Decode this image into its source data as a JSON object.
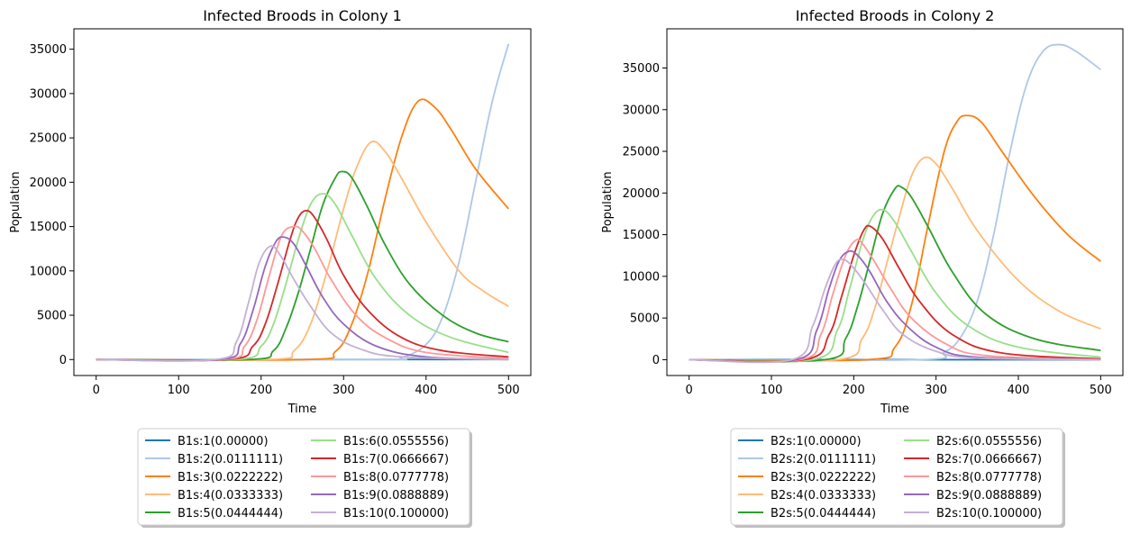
{
  "chart_data": [
    {
      "type": "line",
      "title": "Infected Broods in Colony 1",
      "xlabel": "Time",
      "ylabel": "Population",
      "xlim": [
        -27,
        527
      ],
      "ylim": [
        -1800,
        37300
      ],
      "xticks": [
        0,
        100,
        200,
        300,
        400,
        500
      ],
      "yticks": [
        0,
        5000,
        10000,
        15000,
        20000,
        25000,
        30000,
        35000
      ],
      "legend_placement": "below",
      "series": [
        {
          "name": "B1s:1(0.00000)",
          "color": "#1f77b4",
          "x": [
            0,
            500
          ],
          "y": [
            0,
            0
          ]
        },
        {
          "name": "B1s:2(0.0111111)",
          "color": "#aec7e8",
          "x": [
            0,
            340,
            370,
            400,
            420,
            440,
            460,
            480,
            500
          ],
          "y": [
            0,
            0,
            200,
            1700,
            4800,
            11000,
            20000,
            29000,
            35600
          ]
        },
        {
          "name": "B1s:3(0.0222222)",
          "color": "#ff7f0e",
          "x": [
            0,
            255,
            290,
            310,
            330,
            350,
            370,
            390,
            410,
            430,
            460,
            500
          ],
          "y": [
            0,
            0,
            900,
            4000,
            10000,
            18000,
            25000,
            29100,
            28500,
            26000,
            21500,
            17000
          ]
        },
        {
          "name": "B1s:4(0.0333333)",
          "color": "#ffbb78",
          "x": [
            0,
            210,
            240,
            260,
            280,
            300,
            315,
            333,
            350,
            370,
            400,
            440,
            470,
            500
          ],
          "y": [
            0,
            0,
            1000,
            4000,
            10000,
            17000,
            21500,
            24500,
            23500,
            20500,
            15500,
            10000,
            7700,
            6000
          ]
        },
        {
          "name": "B1s:5(0.0444444)",
          "color": "#2ca02c",
          "x": [
            0,
            185,
            215,
            230,
            245,
            260,
            275,
            290,
            298,
            310,
            330,
            350,
            380,
            420,
            460,
            500
          ],
          "y": [
            0,
            0,
            1000,
            3500,
            7500,
            12500,
            17500,
            20500,
            21200,
            20500,
            17000,
            13000,
            8500,
            5000,
            3000,
            2000
          ]
        },
        {
          "name": "B1s:6(0.0555556)",
          "color": "#98df8a",
          "x": [
            0,
            170,
            200,
            215,
            230,
            245,
            260,
            275,
            290,
            310,
            340,
            380,
            430,
            500
          ],
          "y": [
            0,
            0,
            1500,
            4000,
            8500,
            13500,
            17500,
            18700,
            17500,
            14000,
            9000,
            5000,
            2500,
            800
          ]
        },
        {
          "name": "B1s:7(0.0666667)",
          "color": "#d62728",
          "x": [
            0,
            160,
            190,
            205,
            220,
            235,
            245,
            255,
            265,
            280,
            300,
            330,
            370,
            420,
            500
          ],
          "y": [
            0,
            0,
            1500,
            4000,
            8500,
            13500,
            16000,
            16800,
            16000,
            13500,
            9500,
            5500,
            2500,
            1000,
            300
          ]
        },
        {
          "name": "B1s:8(0.0777778)",
          "color": "#ff9896",
          "x": [
            0,
            155,
            180,
            195,
            210,
            225,
            240,
            250,
            265,
            285,
            315,
            350,
            400,
            500
          ],
          "y": [
            0,
            0,
            1500,
            4500,
            9500,
            14000,
            15000,
            14500,
            12500,
            9000,
            5000,
            2500,
            800,
            100
          ]
        },
        {
          "name": "B1s:9(0.0888889)",
          "color": "#9467bd",
          "x": [
            0,
            150,
            175,
            190,
            205,
            218,
            228,
            240,
            255,
            275,
            300,
            340,
            400,
            500
          ],
          "y": [
            0,
            0,
            1800,
            5500,
            10500,
            13300,
            13800,
            13000,
            10500,
            7000,
            4000,
            1500,
            300,
            0
          ]
        },
        {
          "name": "B1s:10(0.100000)",
          "color": "#c5b0d5",
          "x": [
            0,
            145,
            170,
            185,
            198,
            212,
            225,
            240,
            260,
            285,
            320,
            370,
            500
          ],
          "y": [
            0,
            0,
            2000,
            6500,
            11000,
            12800,
            11500,
            9000,
            6000,
            3000,
            1200,
            300,
            0
          ]
        }
      ]
    },
    {
      "type": "line",
      "title": "Infected Broods in Colony 2",
      "xlabel": "Time",
      "ylabel": "Population",
      "xlim": [
        -27,
        527
      ],
      "ylim": [
        -1900,
        39700
      ],
      "xticks": [
        0,
        100,
        200,
        300,
        400,
        500
      ],
      "yticks": [
        0,
        5000,
        10000,
        15000,
        20000,
        25000,
        30000,
        35000
      ],
      "legend_placement": "below",
      "series": [
        {
          "name": "B2s:1(0.00000)",
          "color": "#1f77b4",
          "x": [
            0,
            500
          ],
          "y": [
            0,
            0
          ]
        },
        {
          "name": "B2s:2(0.0111111)",
          "color": "#aec7e8",
          "x": [
            0,
            280,
            310,
            330,
            350,
            370,
            390,
            410,
            430,
            450,
            470,
            500
          ],
          "y": [
            0,
            0,
            900,
            2700,
            7000,
            15000,
            25000,
            33000,
            37000,
            37800,
            37000,
            34800
          ]
        },
        {
          "name": "B2s:3(0.0222222)",
          "color": "#ff7f0e",
          "x": [
            0,
            215,
            250,
            270,
            290,
            310,
            325,
            337,
            355,
            380,
            420,
            460,
            500
          ],
          "y": [
            0,
            0,
            1500,
            6500,
            16000,
            25000,
            28500,
            29300,
            28500,
            25000,
            19500,
            15000,
            11800
          ]
        },
        {
          "name": "B2s:4(0.0333333)",
          "color": "#ffbb78",
          "x": [
            0,
            180,
            210,
            225,
            240,
            255,
            270,
            285,
            300,
            320,
            350,
            400,
            450,
            500
          ],
          "y": [
            0,
            0,
            2500,
            6000,
            11500,
            17000,
            22000,
            24200,
            23500,
            20500,
            15500,
            9500,
            5800,
            3700
          ]
        },
        {
          "name": "B2s:5(0.0444444)",
          "color": "#2ca02c",
          "x": [
            0,
            165,
            190,
            205,
            220,
            235,
            250,
            258,
            270,
            290,
            320,
            360,
            420,
            500
          ],
          "y": [
            0,
            0,
            2500,
            6500,
            12000,
            17500,
            20500,
            20700,
            19500,
            16000,
            10500,
            5500,
            2500,
            1100
          ]
        },
        {
          "name": "B2s:6(0.0555556)",
          "color": "#98df8a",
          "x": [
            0,
            150,
            180,
            195,
            210,
            222,
            235,
            250,
            270,
            300,
            340,
            400,
            500
          ],
          "y": [
            0,
            0,
            3500,
            8500,
            14000,
            17000,
            18000,
            16500,
            13000,
            8000,
            4000,
            1500,
            300
          ]
        },
        {
          "name": "B2s:7(0.0666667)",
          "color": "#d62728",
          "x": [
            0,
            140,
            170,
            185,
            200,
            212,
            220,
            235,
            255,
            280,
            320,
            380,
            500
          ],
          "y": [
            0,
            0,
            3000,
            7500,
            12500,
            15500,
            16000,
            14500,
            11000,
            7000,
            3000,
            800,
            100
          ]
        },
        {
          "name": "B2s:8(0.0777778)",
          "color": "#ff9896",
          "x": [
            0,
            135,
            160,
            175,
            190,
            202,
            210,
            225,
            245,
            270,
            310,
            360,
            500
          ],
          "y": [
            0,
            0,
            3000,
            8000,
            12500,
            14300,
            14000,
            11800,
            8500,
            5000,
            2000,
            500,
            0
          ]
        },
        {
          "name": "B2s:9(0.0888889)",
          "color": "#9467bd",
          "x": [
            0,
            130,
            155,
            170,
            182,
            194,
            205,
            220,
            240,
            265,
            300,
            350,
            500
          ],
          "y": [
            0,
            0,
            3500,
            8500,
            11800,
            13000,
            12500,
            10500,
            7000,
            4000,
            1500,
            300,
            0
          ]
        },
        {
          "name": "B2s:10(0.100000)",
          "color": "#c5b0d5",
          "x": [
            0,
            125,
            150,
            165,
            178,
            188,
            200,
            215,
            235,
            260,
            300,
            350,
            500
          ],
          "y": [
            0,
            0,
            4000,
            8500,
            11500,
            12000,
            11000,
            9000,
            6000,
            3000,
            1000,
            200,
            0
          ]
        }
      ]
    }
  ]
}
